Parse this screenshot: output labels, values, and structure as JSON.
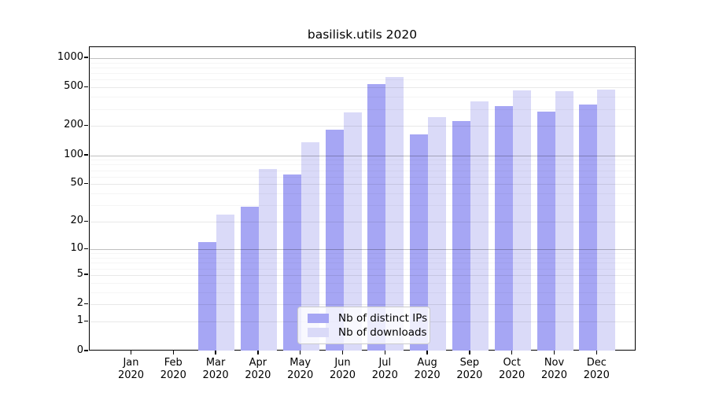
{
  "chart_data": {
    "type": "bar",
    "title": "basilisk.utils 2020",
    "year": "2020",
    "categories": [
      "Jan",
      "Feb",
      "Mar",
      "Apr",
      "May",
      "Jun",
      "Jul",
      "Aug",
      "Sep",
      "Oct",
      "Nov",
      "Dec"
    ],
    "series": [
      {
        "name": "Nb of distinct IPs",
        "color": "#a6a6f4",
        "values": [
          0,
          0,
          12,
          29,
          63,
          183,
          542,
          164,
          224,
          324,
          282,
          333
        ]
      },
      {
        "name": "Nb of downloads",
        "color": "#dadaf8",
        "values": [
          0,
          0,
          24,
          72,
          136,
          277,
          634,
          246,
          362,
          464,
          456,
          473
        ]
      }
    ],
    "y_axis": {
      "scale": "log1p",
      "ticks": [
        0,
        1,
        2,
        5,
        10,
        20,
        50,
        100,
        200,
        500,
        1000
      ],
      "emphasized_gridlines": [
        10,
        100,
        1000
      ],
      "minor_gridlines": [
        3,
        4,
        6,
        7,
        8,
        9,
        30,
        40,
        60,
        70,
        80,
        90,
        300,
        400,
        600,
        700,
        800,
        900
      ],
      "ymax": 1290
    },
    "x_axis": {
      "tick_line2": "2020"
    },
    "legend": {
      "position": "bottom-center"
    }
  }
}
